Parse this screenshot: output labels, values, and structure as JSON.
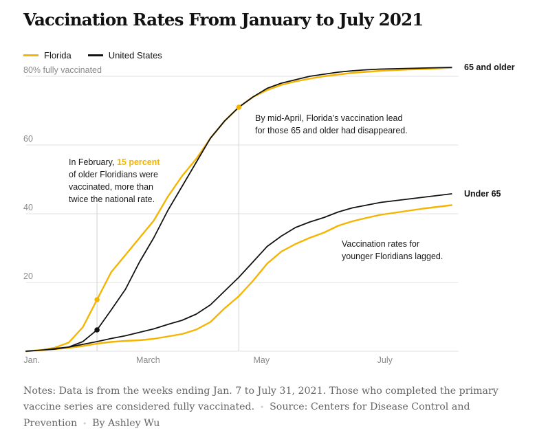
{
  "title": "Vaccination Rates From January to July 2021",
  "colors": {
    "florida": "#f5b400",
    "us": "#121212",
    "grid": "#e2e2e2",
    "annotation_line": "#d0d0d0"
  },
  "legend": {
    "florida": "Florida",
    "us": "United States"
  },
  "chart_data": {
    "type": "line",
    "ylim": [
      0,
      82
    ],
    "xlim": [
      0,
      30.5
    ],
    "x_unit": "weeks after Jan. 7, 2021",
    "y_ticks": [
      {
        "value": 20,
        "label": "20"
      },
      {
        "value": 40,
        "label": "40"
      },
      {
        "value": 60,
        "label": "60"
      },
      {
        "value": 80,
        "label": "80% fully vaccinated"
      }
    ],
    "x_ticks": [
      {
        "value": 0.4,
        "label": "Jan."
      },
      {
        "value": 8.6,
        "label": "March"
      },
      {
        "value": 16.6,
        "label": "May"
      },
      {
        "value": 25.3,
        "label": "July"
      }
    ],
    "groups": [
      {
        "name": "65 and older",
        "series": [
          {
            "name": "Florida",
            "color": "#f5b400",
            "x": [
              0,
              1,
              2,
              3,
              4,
              5,
              6,
              7,
              8,
              9,
              10,
              11,
              12,
              13,
              14,
              15,
              16,
              17,
              18,
              19,
              20,
              21,
              22,
              23,
              24,
              25,
              26,
              27,
              28,
              29,
              30
            ],
            "y": [
              0,
              0.3,
              1,
              2.5,
              7,
              15,
              23,
              28,
              33,
              38,
              45,
              51,
              56,
              62,
              67,
              71,
              74,
              76,
              77.5,
              78.5,
              79.3,
              80,
              80.5,
              81,
              81.3,
              81.6,
              81.8,
              82,
              82.1,
              82.3,
              82.5
            ]
          },
          {
            "name": "United States",
            "color": "#121212",
            "x": [
              0,
              1,
              2,
              3,
              4,
              5,
              6,
              7,
              8,
              9,
              10,
              11,
              12,
              13,
              14,
              15,
              16,
              17,
              18,
              19,
              20,
              21,
              22,
              23,
              24,
              25,
              26,
              27,
              28,
              29,
              30
            ],
            "y": [
              0,
              0.3,
              0.8,
              1.2,
              2.8,
              6.2,
              12,
              18,
              26,
              33,
              41,
              48,
              55,
              62,
              67,
              71,
              74,
              76.5,
              78,
              79,
              80,
              80.6,
              81.2,
              81.6,
              81.9,
              82.1,
              82.2,
              82.3,
              82.4,
              82.5,
              82.6
            ]
          }
        ]
      },
      {
        "name": "Under 65",
        "series": [
          {
            "name": "Florida",
            "color": "#f5b400",
            "x": [
              0,
              1,
              2,
              3,
              4,
              5,
              6,
              7,
              8,
              9,
              10,
              11,
              12,
              13,
              14,
              15,
              16,
              17,
              18,
              19,
              20,
              21,
              22,
              23,
              24,
              25,
              26,
              27,
              28,
              29,
              30
            ],
            "y": [
              0,
              0.3,
              0.6,
              1.0,
              1.5,
              2.2,
              2.7,
              3.0,
              3.2,
              3.6,
              4.3,
              5.0,
              6.3,
              8.5,
              12.5,
              16,
              20.5,
              25.5,
              29,
              31.2,
              33,
              34.5,
              36.5,
              37.8,
              38.8,
              39.7,
              40.3,
              40.9,
              41.5,
              42.0,
              42.5
            ]
          },
          {
            "name": "United States",
            "color": "#121212",
            "x": [
              0,
              1,
              2,
              3,
              4,
              5,
              6,
              7,
              8,
              9,
              10,
              11,
              12,
              13,
              14,
              15,
              16,
              17,
              18,
              19,
              20,
              21,
              22,
              23,
              24,
              25,
              26,
              27,
              28,
              29,
              30
            ],
            "y": [
              0,
              0.3,
              0.6,
              1.2,
              2.0,
              2.8,
              3.7,
              4.5,
              5.5,
              6.5,
              7.8,
              9.0,
              10.8,
              13.5,
              17.5,
              21.5,
              26,
              30.5,
              33.5,
              36,
              37.6,
              38.9,
              40.5,
              41.7,
              42.5,
              43.3,
              43.8,
              44.3,
              44.8,
              45.3,
              45.8
            ]
          }
        ]
      }
    ],
    "markers": [
      {
        "x": 5,
        "y": 15,
        "color": "#f5b400"
      },
      {
        "x": 5,
        "y": 6.2,
        "color": "#121212"
      },
      {
        "x": 15,
        "y": 71,
        "color": "#f5b400"
      }
    ],
    "annotation_lines": [
      {
        "x": 5,
        "from": 0,
        "to": 43
      },
      {
        "x": 15,
        "from": 0,
        "to": 71
      }
    ]
  },
  "annotations": {
    "february": {
      "before": "In February, ",
      "highlight": "15 percent",
      "lines": [
        "of older Floridians were",
        "vaccinated, more than",
        "twice the national rate."
      ]
    },
    "april": [
      "By mid-April, Florida’s vaccination lead",
      "for those 65 and older had disappeared."
    ],
    "younger": [
      "Vaccination rates for",
      "younger Floridians lagged."
    ]
  },
  "notes": {
    "text": "Notes: Data is from the weeks ending Jan. 7 to July 31, 2021. Those who completed the primary vaccine series are considered fully vaccinated.",
    "source": "Source: Centers for Disease Control and Prevention",
    "byline": "By Ashley Wu",
    "separator": "•"
  }
}
